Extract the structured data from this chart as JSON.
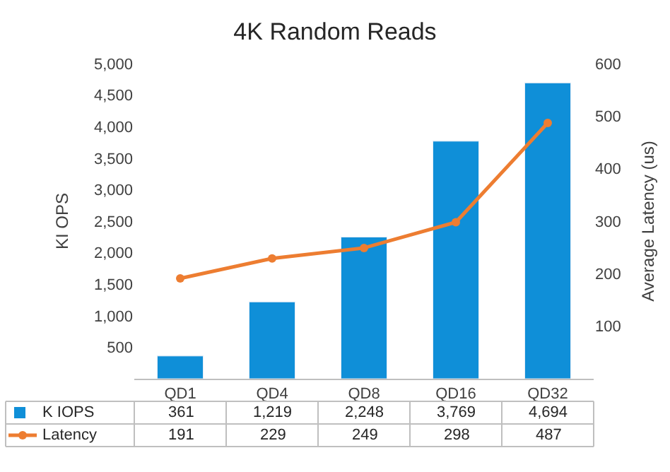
{
  "chart_data": {
    "type": "bar",
    "title": "4K Random Reads",
    "ylabel": "KI OPS",
    "y2label": "Average Latency (us)",
    "categories": [
      "QD1",
      "QD4",
      "QD8",
      "QD16",
      "QD32"
    ],
    "series": [
      {
        "name": "K IOPS",
        "color": "#0f8fd8",
        "values": [
          361,
          1219,
          2248,
          3769,
          4694
        ],
        "value_labels": [
          "361",
          "1,219",
          "2,248",
          "3,769",
          "4,694"
        ]
      },
      {
        "name": "Latency",
        "type": "line",
        "axis": "y2",
        "color": "#ed7d31",
        "marker": "circle",
        "line_style": "solid",
        "values": [
          191,
          229,
          249,
          298,
          487
        ],
        "value_labels": [
          "191",
          "229",
          "249",
          "298",
          "487"
        ]
      }
    ],
    "ylim": [
      0,
      5000
    ],
    "yticks": [
      {
        "value": 500,
        "label": "500"
      },
      {
        "value": 1000,
        "label": "1,000"
      },
      {
        "value": 1500,
        "label": "1,500"
      },
      {
        "value": 2000,
        "label": "2,000"
      },
      {
        "value": 2500,
        "label": "2,500"
      },
      {
        "value": 3000,
        "label": "3,000"
      },
      {
        "value": 3500,
        "label": "3,500"
      },
      {
        "value": 4000,
        "label": "4,000"
      },
      {
        "value": 4500,
        "label": "4,500"
      },
      {
        "value": 5000,
        "label": "5,000"
      }
    ],
    "y2lim": [
      0,
      600
    ],
    "y2ticks": [
      100,
      200,
      300,
      400,
      500,
      600
    ],
    "legend": "bottom"
  }
}
